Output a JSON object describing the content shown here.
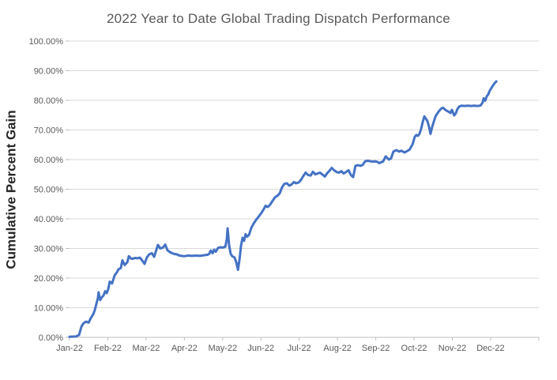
{
  "chart_data": {
    "type": "line",
    "title": "2022 Year to Date Global Trading Dispatch Performance",
    "xlabel": "",
    "ylabel": "Cumulative Percent Gain",
    "legend": "none",
    "grid": "horizontal",
    "x_unit": "months since Jan-22 (fractional = day within month)",
    "xlim": [
      0,
      12.26
    ],
    "ylim": [
      0,
      100
    ],
    "x_tick_positions": [
      0,
      1,
      2,
      3,
      4,
      5,
      6,
      7,
      8,
      9,
      10,
      11
    ],
    "x_tick_labels": [
      "Jan-22",
      "Feb-22",
      "Mar-22",
      "Apr-22",
      "May-22",
      "Jun-22",
      "Jul-22",
      "Aug-22",
      "Sep-22",
      "Oct-22",
      "Nov-22",
      "Dec-22"
    ],
    "y_tick_values": [
      0,
      10,
      20,
      30,
      40,
      50,
      60,
      70,
      80,
      90,
      100
    ],
    "y_tick_labels": [
      "0.00%",
      "10.00%",
      "20.00%",
      "30.00%",
      "40.00%",
      "50.00%",
      "60.00%",
      "70.00%",
      "80.00%",
      "90.00%",
      "100.00%"
    ],
    "series": [
      {
        "name": "Cumulative Percent Gain",
        "color": "#4472C4",
        "points": [
          [
            0.0,
            0.2
          ],
          [
            0.17,
            0.3
          ],
          [
            0.25,
            0.8
          ],
          [
            0.31,
            3.6
          ],
          [
            0.37,
            4.8
          ],
          [
            0.43,
            5.3
          ],
          [
            0.5,
            5.0
          ],
          [
            0.56,
            6.6
          ],
          [
            0.62,
            7.8
          ],
          [
            0.66,
            9.2
          ],
          [
            0.7,
            11.2
          ],
          [
            0.74,
            13.2
          ],
          [
            0.76,
            15.2
          ],
          [
            0.8,
            12.6
          ],
          [
            0.85,
            13.6
          ],
          [
            0.89,
            14.2
          ],
          [
            0.93,
            15.6
          ],
          [
            0.97,
            14.9
          ],
          [
            1.01,
            16.2
          ],
          [
            1.05,
            18.8
          ],
          [
            1.11,
            18.2
          ],
          [
            1.18,
            21.0
          ],
          [
            1.24,
            22.0
          ],
          [
            1.28,
            23.0
          ],
          [
            1.34,
            23.4
          ],
          [
            1.38,
            26.0
          ],
          [
            1.44,
            24.4
          ],
          [
            1.51,
            25.4
          ],
          [
            1.55,
            27.4
          ],
          [
            1.61,
            26.6
          ],
          [
            1.65,
            26.5
          ],
          [
            1.71,
            26.8
          ],
          [
            1.78,
            26.7
          ],
          [
            1.84,
            26.9
          ],
          [
            1.9,
            25.9
          ],
          [
            1.96,
            24.8
          ],
          [
            2.02,
            27.0
          ],
          [
            2.08,
            28.0
          ],
          [
            2.15,
            28.4
          ],
          [
            2.21,
            27.2
          ],
          [
            2.27,
            29.6
          ],
          [
            2.31,
            31.2
          ],
          [
            2.37,
            30.0
          ],
          [
            2.44,
            30.3
          ],
          [
            2.5,
            31.3
          ],
          [
            2.56,
            29.4
          ],
          [
            2.62,
            28.8
          ],
          [
            2.68,
            28.4
          ],
          [
            2.75,
            28.1
          ],
          [
            2.81,
            28.0
          ],
          [
            2.87,
            27.6
          ],
          [
            2.93,
            27.5
          ],
          [
            2.99,
            27.4
          ],
          [
            3.1,
            27.6
          ],
          [
            3.2,
            27.5
          ],
          [
            3.3,
            27.6
          ],
          [
            3.41,
            27.5
          ],
          [
            3.51,
            27.7
          ],
          [
            3.61,
            27.9
          ],
          [
            3.65,
            28.2
          ],
          [
            3.69,
            29.3
          ],
          [
            3.74,
            28.4
          ],
          [
            3.78,
            29.6
          ],
          [
            3.82,
            28.9
          ],
          [
            3.88,
            30.2
          ],
          [
            3.94,
            30.4
          ],
          [
            4.0,
            30.3
          ],
          [
            4.07,
            30.6
          ],
          [
            4.11,
            33.2
          ],
          [
            4.13,
            36.8
          ],
          [
            4.17,
            31.0
          ],
          [
            4.21,
            28.2
          ],
          [
            4.25,
            27.4
          ],
          [
            4.31,
            27.0
          ],
          [
            4.36,
            25.2
          ],
          [
            4.4,
            22.8
          ],
          [
            4.44,
            26.2
          ],
          [
            4.48,
            31.0
          ],
          [
            4.52,
            33.6
          ],
          [
            4.56,
            32.6
          ],
          [
            4.6,
            34.8
          ],
          [
            4.64,
            34.0
          ],
          [
            4.69,
            34.6
          ],
          [
            4.75,
            37.0
          ],
          [
            4.81,
            38.4
          ],
          [
            4.87,
            39.6
          ],
          [
            4.93,
            40.6
          ],
          [
            5.0,
            41.8
          ],
          [
            5.06,
            43.0
          ],
          [
            5.12,
            44.4
          ],
          [
            5.18,
            44.0
          ],
          [
            5.24,
            44.8
          ],
          [
            5.3,
            46.0
          ],
          [
            5.37,
            47.3
          ],
          [
            5.43,
            47.8
          ],
          [
            5.49,
            48.6
          ],
          [
            5.55,
            50.6
          ],
          [
            5.61,
            51.8
          ],
          [
            5.68,
            52.0
          ],
          [
            5.74,
            51.2
          ],
          [
            5.8,
            51.6
          ],
          [
            5.86,
            52.4
          ],
          [
            5.92,
            52.0
          ],
          [
            5.99,
            52.3
          ],
          [
            6.05,
            53.2
          ],
          [
            6.11,
            54.5
          ],
          [
            6.17,
            55.6
          ],
          [
            6.23,
            54.8
          ],
          [
            6.3,
            54.6
          ],
          [
            6.36,
            55.9
          ],
          [
            6.42,
            55.0
          ],
          [
            6.48,
            55.3
          ],
          [
            6.54,
            55.6
          ],
          [
            6.6,
            55.0
          ],
          [
            6.67,
            54.3
          ],
          [
            6.73,
            55.4
          ],
          [
            6.79,
            56.2
          ],
          [
            6.85,
            57.2
          ],
          [
            6.91,
            56.4
          ],
          [
            6.98,
            55.8
          ],
          [
            7.04,
            55.6
          ],
          [
            7.1,
            56.1
          ],
          [
            7.16,
            55.3
          ],
          [
            7.22,
            55.8
          ],
          [
            7.29,
            56.4
          ],
          [
            7.35,
            54.8
          ],
          [
            7.41,
            54.1
          ],
          [
            7.47,
            57.9
          ],
          [
            7.53,
            58.1
          ],
          [
            7.6,
            57.9
          ],
          [
            7.66,
            58.2
          ],
          [
            7.72,
            59.4
          ],
          [
            7.78,
            59.6
          ],
          [
            7.84,
            59.5
          ],
          [
            7.9,
            59.3
          ],
          [
            7.97,
            59.4
          ],
          [
            8.03,
            59.3
          ],
          [
            8.09,
            58.8
          ],
          [
            8.15,
            59.2
          ],
          [
            8.19,
            59.3
          ],
          [
            8.26,
            61.1
          ],
          [
            8.34,
            60.0
          ],
          [
            8.4,
            60.4
          ],
          [
            8.46,
            62.7
          ],
          [
            8.54,
            63.2
          ],
          [
            8.61,
            62.7
          ],
          [
            8.67,
            63.0
          ],
          [
            8.75,
            62.4
          ],
          [
            8.81,
            62.8
          ],
          [
            8.88,
            63.3
          ],
          [
            8.96,
            65.1
          ],
          [
            9.02,
            67.7
          ],
          [
            9.06,
            68.3
          ],
          [
            9.1,
            68.0
          ],
          [
            9.14,
            68.6
          ],
          [
            9.18,
            70.2
          ],
          [
            9.23,
            72.8
          ],
          [
            9.27,
            74.6
          ],
          [
            9.31,
            73.8
          ],
          [
            9.35,
            73.0
          ],
          [
            9.39,
            71.2
          ],
          [
            9.43,
            68.7
          ],
          [
            9.47,
            70.8
          ],
          [
            9.51,
            72.6
          ],
          [
            9.56,
            74.6
          ],
          [
            9.6,
            75.4
          ],
          [
            9.64,
            76.2
          ],
          [
            9.68,
            76.8
          ],
          [
            9.72,
            77.3
          ],
          [
            9.76,
            77.5
          ],
          [
            9.8,
            77.0
          ],
          [
            9.85,
            76.5
          ],
          [
            9.91,
            76.1
          ],
          [
            9.95,
            75.7
          ],
          [
            9.99,
            76.8
          ],
          [
            10.05,
            74.9
          ],
          [
            10.09,
            75.6
          ],
          [
            10.13,
            77.0
          ],
          [
            10.18,
            77.9
          ],
          [
            10.24,
            78.2
          ],
          [
            10.32,
            78.1
          ],
          [
            10.4,
            78.2
          ],
          [
            10.49,
            78.1
          ],
          [
            10.57,
            78.2
          ],
          [
            10.65,
            78.1
          ],
          [
            10.73,
            78.2
          ],
          [
            10.79,
            79.2
          ],
          [
            10.82,
            80.7
          ],
          [
            10.86,
            79.9
          ],
          [
            10.9,
            81.4
          ],
          [
            10.94,
            82.0
          ],
          [
            10.98,
            83.3
          ],
          [
            11.04,
            84.6
          ],
          [
            11.1,
            85.7
          ],
          [
            11.15,
            86.4
          ]
        ]
      }
    ]
  },
  "colors": {
    "line": "#4472C4",
    "gridline": "#D9D9D9",
    "axis": "#BFBFBF",
    "tick_label": "#595959",
    "title": "#595959",
    "y_axis_title": "#262626",
    "background": "#FFFFFF"
  }
}
